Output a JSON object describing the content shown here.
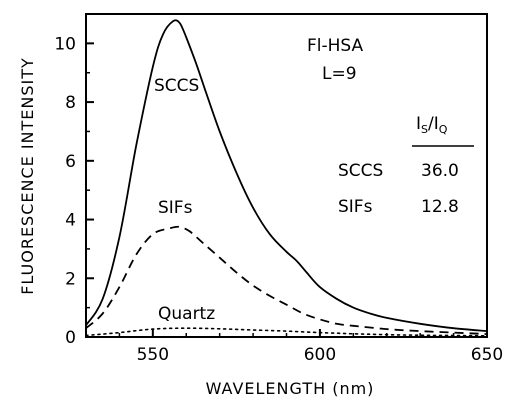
{
  "chart_data": {
    "type": "line",
    "xlabel": "WAVELENGTH (nm)",
    "ylabel": "FLUORESCENCE INTENSITY",
    "xlim": [
      530,
      650
    ],
    "ylim": [
      0,
      11
    ],
    "xticks": [
      550,
      600,
      650
    ],
    "yticks": [
      0,
      2,
      4,
      6,
      8,
      10
    ],
    "grid": false,
    "series": [
      {
        "name": "SCCS",
        "style": "solid",
        "x": [
          530,
          535,
          540,
          545,
          550,
          553,
          556,
          558,
          560,
          563,
          566,
          570,
          575,
          580,
          585,
          590,
          593,
          596,
          600,
          605,
          610,
          615,
          620,
          630,
          640,
          650
        ],
        "y": [
          0.4,
          1.3,
          3.4,
          6.5,
          9.2,
          10.3,
          10.75,
          10.7,
          10.2,
          9.3,
          8.3,
          7.0,
          5.6,
          4.4,
          3.5,
          2.9,
          2.6,
          2.2,
          1.7,
          1.3,
          1.0,
          0.8,
          0.65,
          0.45,
          0.3,
          0.2
        ]
      },
      {
        "name": "SIFs",
        "style": "dashed",
        "x": [
          530,
          535,
          540,
          545,
          550,
          555,
          558,
          561,
          565,
          570,
          575,
          580,
          585,
          590,
          595,
          600,
          605,
          610,
          620,
          630,
          640,
          650
        ],
        "y": [
          0.3,
          0.8,
          1.7,
          2.8,
          3.5,
          3.7,
          3.75,
          3.6,
          3.2,
          2.7,
          2.2,
          1.75,
          1.4,
          1.1,
          0.8,
          0.6,
          0.45,
          0.38,
          0.27,
          0.2,
          0.15,
          0.1
        ]
      },
      {
        "name": "Quartz",
        "style": "dotted",
        "x": [
          530,
          540,
          550,
          560,
          570,
          580,
          590,
          600,
          610,
          620,
          630,
          640,
          650
        ],
        "y": [
          0.05,
          0.15,
          0.27,
          0.3,
          0.28,
          0.24,
          0.2,
          0.15,
          0.11,
          0.08,
          0.06,
          0.05,
          0.04
        ]
      }
    ]
  },
  "labels": {
    "x_axis_title": "WAVELENGTH (nm)",
    "y_axis_title": "FLUORESCENCE INTENSITY",
    "sample": "Fl-HSA",
    "loading": "L=9",
    "curve_sccs": "SCCS",
    "curve_sifs": "SIFs",
    "curve_quartz": "Quartz"
  },
  "ratio_table": {
    "header_numerator": "I",
    "header_numerator_sub": "S",
    "header_slash": "/",
    "header_denominator": "I",
    "header_denominator_sub": "Q",
    "rows": [
      {
        "label": "SCCS",
        "value": "36.0"
      },
      {
        "label": "SIFs",
        "value": "12.8"
      }
    ]
  }
}
